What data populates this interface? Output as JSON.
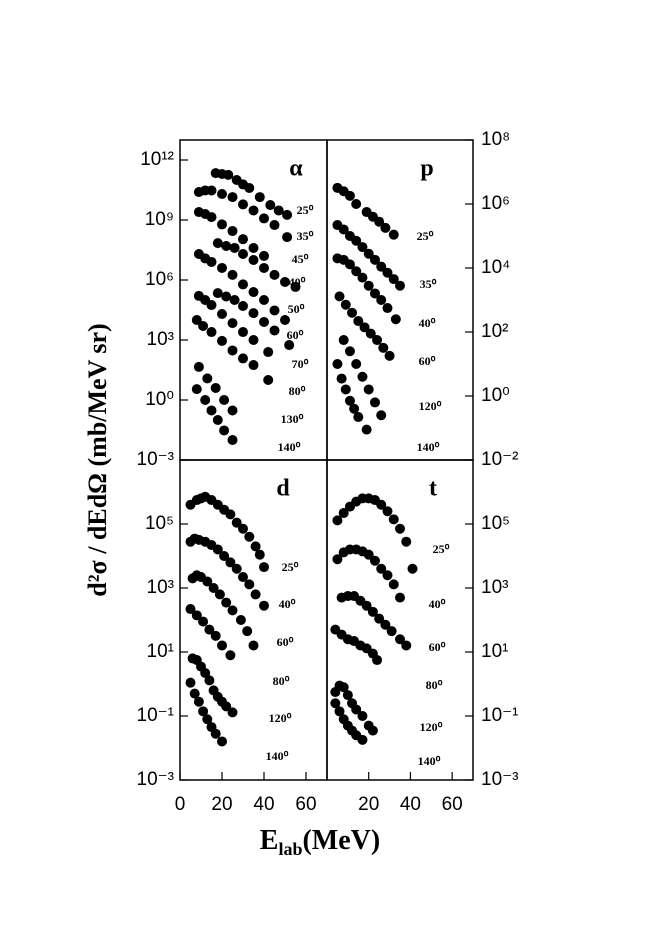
{
  "y_label": "d²σ / dEdΩ  (mb/MeV sr)",
  "x_label": [
    "E",
    "lab",
    "(MeV)"
  ],
  "chart_data": [
    {
      "type": "scatter",
      "title": "α",
      "log_y": true,
      "color": "#000000",
      "xlim": [
        0,
        70
      ],
      "ylim": [
        0.001,
        10000000000000.0
      ],
      "yticks": [
        {
          "value": 0.001,
          "label": "10⁻³"
        },
        {
          "value": 1,
          "label": "10⁰"
        },
        {
          "value": 1000,
          "label": "10³"
        },
        {
          "value": 1000000,
          "label": "10⁶"
        },
        {
          "value": 1000000000,
          "label": "10⁹"
        },
        {
          "value": 1000000000000,
          "label": "10¹²"
        }
      ],
      "series": [
        {
          "name": "25⁰",
          "x": [
            17,
            20,
            23,
            27,
            30,
            33,
            38,
            43,
            47,
            51
          ],
          "values": [
            220000000000.0,
            200000000000.0,
            180000000000.0,
            100000000000.0,
            60000000000.0,
            40000000000.0,
            14000000000.0,
            5600000000.0,
            3000000000.0,
            1800000000.0
          ]
        },
        {
          "name": "35⁰",
          "x": [
            9,
            12,
            15,
            20,
            25,
            30,
            35,
            40,
            45,
            51
          ],
          "values": [
            25000000000.0,
            30000000000.0,
            30000000000.0,
            20000000000.0,
            14000000000.0,
            6000000000.0,
            3000000000.0,
            1200000000.0,
            560000000.0,
            140000000.0
          ]
        },
        {
          "name": "45⁰",
          "x": [
            9,
            12,
            15,
            20,
            25,
            30,
            35,
            40
          ],
          "values": [
            2500000000.0,
            2000000000.0,
            1400000000.0,
            600000000.0,
            280000000.0,
            110000000.0,
            40000000.0,
            16000000.0
          ]
        },
        {
          "name": "40⁰",
          "x": [
            18,
            22,
            26,
            30,
            35,
            40,
            45,
            50,
            55
          ],
          "values": [
            70000000.0,
            50000000.0,
            40000000.0,
            20000000.0,
            10000000.0,
            4000000.0,
            1800000.0,
            800000.0,
            450000.0
          ]
        },
        {
          "name": "50⁰",
          "x": [
            9,
            12,
            15,
            20,
            25,
            30,
            35,
            40,
            45,
            50
          ],
          "values": [
            20000000.0,
            12000000.0,
            8000000.0,
            4000000.0,
            1800000.0,
            600000.0,
            250000.0,
            100000.0,
            30000.0,
            10000.0
          ]
        },
        {
          "name": "60⁰",
          "x": [
            18,
            22,
            26,
            30,
            35,
            40,
            45,
            52
          ],
          "values": [
            220000.0,
            150000.0,
            100000.0,
            50000.0,
            22000.0,
            8000.0,
            3000.0,
            560
          ]
        },
        {
          "name": "70⁰",
          "x": [
            9,
            12,
            15,
            20,
            25,
            30,
            35,
            42
          ],
          "values": [
            160000.0,
            100000.0,
            56000.0,
            20000.0,
            7000.0,
            2500.0,
            1000.0,
            250
          ]
        },
        {
          "name": "80⁰",
          "x": [
            8,
            11,
            15,
            20,
            25,
            30,
            35,
            42
          ],
          "values": [
            10000.0,
            5000.0,
            2500.0,
            900,
            300,
            120,
            56,
            10
          ]
        },
        {
          "name": "130⁰",
          "x": [
            9,
            13,
            17,
            21,
            25
          ],
          "values": [
            45,
            12,
            4,
            1,
            0.3
          ]
        },
        {
          "name": "140⁰",
          "x": [
            8,
            12,
            15,
            18,
            21,
            25
          ],
          "values": [
            3.5,
            1,
            0.3,
            0.1,
            0.03,
            0.01
          ]
        }
      ]
    },
    {
      "type": "scatter",
      "title": "p",
      "log_y": true,
      "color": "#000000",
      "xlim": [
        0,
        70
      ],
      "ylim": [
        0.01,
        100000000.0
      ],
      "yticks": [
        {
          "value": 0.01,
          "label": "10⁻²"
        },
        {
          "value": 1,
          "label": "10⁰"
        },
        {
          "value": 100,
          "label": "10²"
        },
        {
          "value": 10000,
          "label": "10⁴"
        },
        {
          "value": 1000000,
          "label": "10⁶"
        },
        {
          "value": 100000000,
          "label": "10⁸"
        }
      ],
      "series": [
        {
          "name": "25⁰",
          "x": [
            5,
            8,
            11,
            14,
            19,
            22,
            25,
            28,
            32
          ],
          "values": [
            3200000.0,
            2500000.0,
            1800000.0,
            1000000.0,
            560000.0,
            400000.0,
            280000.0,
            180000.0,
            110000.0
          ]
        },
        {
          "name": "35⁰",
          "x": [
            5,
            8,
            11,
            14,
            17,
            20,
            23,
            26,
            29,
            32,
            35
          ],
          "values": [
            220000.0,
            160000.0,
            100000.0,
            71000.0,
            45000.0,
            28000.0,
            18000.0,
            11000.0,
            7100.0,
            4500.0,
            2800.0
          ]
        },
        {
          "name": "40⁰",
          "x": [
            5,
            8,
            11,
            14,
            17,
            20,
            23,
            26,
            29,
            33
          ],
          "values": [
            20000.0,
            18000.0,
            13000.0,
            7900.0,
            5000.0,
            2800.0,
            1600.0,
            1000.0,
            560,
            250
          ]
        },
        {
          "name": "60⁰",
          "x": [
            6,
            9,
            12,
            15,
            18,
            21,
            24,
            27,
            30
          ],
          "values": [
            1300.0,
            710,
            400,
            220,
            140,
            89,
            56,
            32,
            18
          ]
        },
        {
          "name": "120⁰",
          "x": [
            8,
            11,
            14,
            17,
            20,
            23,
            26
          ],
          "values": [
            56,
            25,
            10,
            4,
            1.6,
            0.63,
            0.25
          ]
        },
        {
          "name": "140⁰",
          "x": [
            5,
            7,
            9,
            11,
            13,
            15,
            19
          ],
          "values": [
            10,
            3.5,
            1.6,
            0.71,
            0.4,
            0.22,
            0.089
          ]
        }
      ]
    },
    {
      "type": "scatter",
      "title": "d",
      "log_y": true,
      "color": "#000000",
      "xlim": [
        0,
        70
      ],
      "ylim": [
        0.001,
        10000000.0
      ],
      "xticks": [
        0,
        20,
        40,
        60
      ],
      "yticks": [
        {
          "value": 0.001,
          "label": "10⁻³"
        },
        {
          "value": 0.1,
          "label": "10⁻¹"
        },
        {
          "value": 10,
          "label": "10¹"
        },
        {
          "value": 1000,
          "label": "10³"
        },
        {
          "value": 100000,
          "label": "10⁵"
        }
      ],
      "series": [
        {
          "name": "25⁰",
          "x": [
            5,
            8,
            10,
            12,
            15,
            18,
            21,
            24,
            27,
            30,
            33,
            36,
            38,
            40
          ],
          "values": [
            400000.0,
            560000.0,
            630000.0,
            710000.0,
            560000.0,
            400000.0,
            280000.0,
            200000.0,
            110000.0,
            71000.0,
            40000.0,
            20000.0,
            11000.0,
            4500.0
          ]
        },
        {
          "name": "40⁰",
          "x": [
            5,
            7,
            9,
            12,
            15,
            18,
            21,
            24,
            27,
            30,
            33,
            36,
            40
          ],
          "values": [
            28000.0,
            35000.0,
            32000.0,
            28000.0,
            22000.0,
            16000.0,
            10000.0,
            6300.0,
            4000.0,
            2200.0,
            1300.0,
            630,
            280
          ]
        },
        {
          "name": "60⁰",
          "x": [
            6,
            8,
            10,
            13,
            16,
            19,
            22,
            25,
            29,
            32,
            35
          ],
          "values": [
            2000.0,
            2500.0,
            2200.0,
            1600.0,
            1000.0,
            630,
            350,
            200,
            100,
            45,
            16
          ]
        },
        {
          "name": "80⁰",
          "x": [
            5,
            8,
            11,
            14,
            17,
            20,
            24
          ],
          "values": [
            220,
            140,
            89,
            50,
            32,
            16,
            7.9
          ]
        },
        {
          "name": "120⁰",
          "x": [
            6,
            8,
            10,
            12,
            14,
            16,
            18,
            20,
            22,
            25
          ],
          "values": [
            6.3,
            5.6,
            3.5,
            2.2,
            1.3,
            0.63,
            0.4,
            0.28,
            0.2,
            0.13
          ]
        },
        {
          "name": "140⁰",
          "x": [
            5,
            7,
            9,
            11,
            13,
            15,
            17,
            20
          ],
          "values": [
            1.1,
            0.5,
            0.28,
            0.14,
            0.079,
            0.045,
            0.028,
            0.016
          ]
        }
      ]
    },
    {
      "type": "scatter",
      "title": "t",
      "log_y": true,
      "color": "#000000",
      "xlim": [
        0,
        70
      ],
      "ylim": [
        0.001,
        10000000.0
      ],
      "xticks": [
        20,
        40,
        60
      ],
      "yticks": [
        {
          "value": 0.001,
          "label": "10⁻³"
        },
        {
          "value": 0.1,
          "label": "10⁻¹"
        },
        {
          "value": 10,
          "label": "10¹"
        },
        {
          "value": 1000,
          "label": "10³"
        },
        {
          "value": 100000,
          "label": "10⁵"
        }
      ],
      "series": [
        {
          "name": "25⁰",
          "x": [
            5,
            8,
            11,
            14,
            17,
            20,
            23,
            26,
            29,
            32,
            35,
            38,
            41
          ],
          "values": [
            130000.0,
            220000.0,
            350000.0,
            500000.0,
            630000.0,
            630000.0,
            560000.0,
            400000.0,
            250000.0,
            140000.0,
            71000.0,
            28000.0,
            4000.0
          ]
        },
        {
          "name": "40⁰",
          "x": [
            5,
            8,
            11,
            14,
            17,
            20,
            23,
            26,
            29,
            32,
            35
          ],
          "values": [
            7900.0,
            13000.0,
            16000.0,
            16000.0,
            14000.0,
            11000.0,
            7100.0,
            4000.0,
            2500.0,
            1300.0,
            500
          ]
        },
        {
          "name": "60⁰",
          "x": [
            7,
            10,
            13,
            16,
            19,
            22,
            25,
            28,
            31,
            35,
            38
          ],
          "values": [
            500,
            560,
            560,
            400,
            280,
            180,
            110,
            71,
            45,
            25,
            16
          ]
        },
        {
          "name": "80⁰",
          "x": [
            4,
            7,
            10,
            13,
            16,
            19,
            22,
            24
          ],
          "values": [
            50,
            35,
            25,
            22,
            16,
            13,
            8.9,
            5.6
          ]
        },
        {
          "name": "120⁰",
          "x": [
            4,
            6,
            8,
            10,
            12,
            14,
            17,
            20,
            22
          ],
          "values": [
            0.56,
            0.89,
            0.79,
            0.45,
            0.25,
            0.16,
            0.1,
            0.05,
            0.035
          ]
        },
        {
          "name": "140⁰",
          "x": [
            4,
            6,
            8,
            10,
            12,
            14,
            17
          ],
          "values": [
            0.25,
            0.14,
            0.079,
            0.05,
            0.035,
            0.025,
            0.018
          ]
        }
      ]
    }
  ]
}
